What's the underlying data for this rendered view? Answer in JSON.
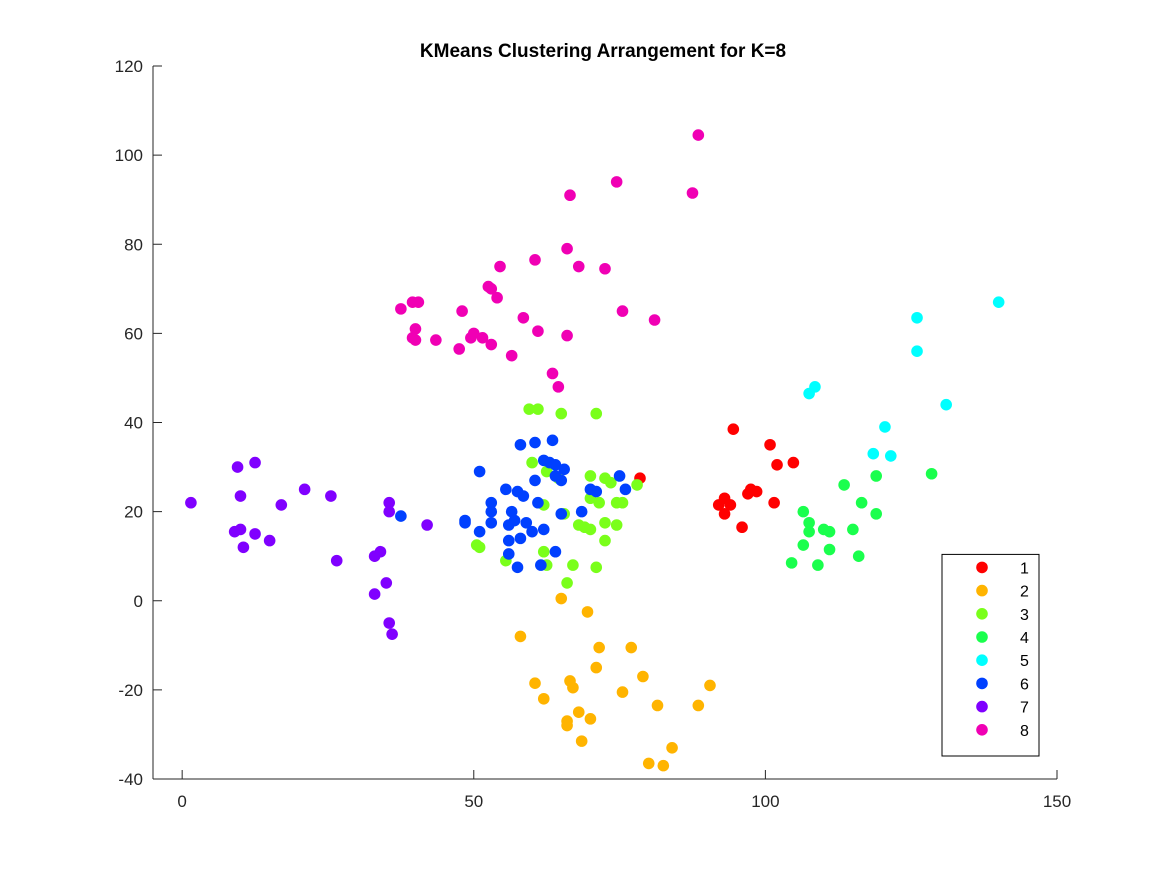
{
  "chart_data": {
    "type": "scatter",
    "title": "KMeans Clustering Arrangement for K=8",
    "xlabel": "",
    "ylabel": "",
    "xlim": [
      -5,
      150
    ],
    "ylim": [
      -40,
      120
    ],
    "xticks": [
      0,
      50,
      100,
      150
    ],
    "yticks": [
      -40,
      -20,
      0,
      20,
      40,
      60,
      80,
      100,
      120
    ],
    "grid": false,
    "legend_position": "bottom-right",
    "series": [
      {
        "name": "1",
        "color": "#ff0000",
        "points": [
          [
            78.5,
            27.5
          ],
          [
            94.5,
            38.5
          ],
          [
            100.8,
            35.0
          ],
          [
            102.0,
            30.5
          ],
          [
            104.8,
            31.0
          ],
          [
            92.0,
            21.5
          ],
          [
            93.0,
            23.0
          ],
          [
            94.0,
            21.5
          ],
          [
            93.0,
            19.5
          ],
          [
            96.0,
            16.5
          ],
          [
            97.0,
            24.0
          ],
          [
            97.5,
            25.0
          ],
          [
            98.5,
            24.5
          ],
          [
            101.5,
            22.0
          ]
        ]
      },
      {
        "name": "2",
        "color": "#ffb400",
        "points": [
          [
            58.0,
            -8.0
          ],
          [
            65.0,
            0.5
          ],
          [
            69.5,
            -2.5
          ],
          [
            71.5,
            -10.5
          ],
          [
            77.0,
            -10.5
          ],
          [
            71.0,
            -15.0
          ],
          [
            60.5,
            -18.5
          ],
          [
            66.5,
            -18.0
          ],
          [
            67.0,
            -19.5
          ],
          [
            79.0,
            -17.0
          ],
          [
            75.5,
            -20.5
          ],
          [
            90.5,
            -19.0
          ],
          [
            62.0,
            -22.0
          ],
          [
            81.5,
            -23.5
          ],
          [
            88.5,
            -23.5
          ],
          [
            68.0,
            -25.0
          ],
          [
            70.0,
            -26.5
          ],
          [
            66.0,
            -27.0
          ],
          [
            66.0,
            -28.0
          ],
          [
            68.5,
            -31.5
          ],
          [
            84.0,
            -33.0
          ],
          [
            80.0,
            -36.5
          ],
          [
            82.5,
            -37.0
          ]
        ]
      },
      {
        "name": "3",
        "color": "#7aff1a",
        "points": [
          [
            59.5,
            43.0
          ],
          [
            61.0,
            43.0
          ],
          [
            65.0,
            42.0
          ],
          [
            71.0,
            42.0
          ],
          [
            60.0,
            31.0
          ],
          [
            62.5,
            29.0
          ],
          [
            64.5,
            27.5
          ],
          [
            70.0,
            28.0
          ],
          [
            72.5,
            27.5
          ],
          [
            73.5,
            26.5
          ],
          [
            78.0,
            26.0
          ],
          [
            70.0,
            23.0
          ],
          [
            71.5,
            22.0
          ],
          [
            74.5,
            22.0
          ],
          [
            75.5,
            22.0
          ],
          [
            62.0,
            21.5
          ],
          [
            68.0,
            17.0
          ],
          [
            69.0,
            16.5
          ],
          [
            70.0,
            16.0
          ],
          [
            72.5,
            17.5
          ],
          [
            74.5,
            17.0
          ],
          [
            72.5,
            13.5
          ],
          [
            50.5,
            12.5
          ],
          [
            51.0,
            12.0
          ],
          [
            55.5,
            9.0
          ],
          [
            62.0,
            11.0
          ],
          [
            62.5,
            8.0
          ],
          [
            67.0,
            8.0
          ],
          [
            71.0,
            7.5
          ],
          [
            66.0,
            4.0
          ],
          [
            65.5,
            19.5
          ]
        ]
      },
      {
        "name": "4",
        "color": "#1aff4d",
        "points": [
          [
            113.5,
            26.0
          ],
          [
            119.0,
            28.0
          ],
          [
            128.5,
            28.5
          ],
          [
            116.5,
            22.0
          ],
          [
            106.5,
            20.0
          ],
          [
            119.0,
            19.5
          ],
          [
            107.5,
            17.5
          ],
          [
            107.5,
            15.5
          ],
          [
            110.0,
            16.0
          ],
          [
            111.0,
            15.5
          ],
          [
            115.0,
            16.0
          ],
          [
            106.5,
            12.5
          ],
          [
            111.0,
            11.5
          ],
          [
            116.0,
            10.0
          ],
          [
            104.5,
            8.5
          ],
          [
            109.0,
            8.0
          ]
        ]
      },
      {
        "name": "5",
        "color": "#00ffff",
        "points": [
          [
            140.0,
            67.0
          ],
          [
            126.0,
            63.5
          ],
          [
            126.0,
            56.0
          ],
          [
            108.5,
            48.0
          ],
          [
            107.5,
            46.5
          ],
          [
            131.0,
            44.0
          ],
          [
            120.5,
            39.0
          ],
          [
            118.5,
            33.0
          ],
          [
            121.5,
            32.5
          ]
        ]
      },
      {
        "name": "6",
        "color": "#0040ff",
        "points": [
          [
            63.5,
            36.0
          ],
          [
            58.0,
            35.0
          ],
          [
            60.5,
            35.5
          ],
          [
            62.0,
            31.5
          ],
          [
            63.0,
            31.0
          ],
          [
            64.0,
            30.5
          ],
          [
            65.5,
            29.5
          ],
          [
            64.0,
            28.0
          ],
          [
            60.5,
            27.0
          ],
          [
            65.0,
            27.0
          ],
          [
            51.0,
            29.0
          ],
          [
            75.0,
            28.0
          ],
          [
            70.0,
            25.0
          ],
          [
            71.0,
            24.5
          ],
          [
            76.0,
            25.0
          ],
          [
            57.5,
            24.5
          ],
          [
            58.5,
            23.5
          ],
          [
            55.5,
            25.0
          ],
          [
            53.0,
            22.0
          ],
          [
            61.0,
            22.0
          ],
          [
            53.0,
            20.0
          ],
          [
            56.5,
            20.0
          ],
          [
            65.0,
            19.5
          ],
          [
            68.5,
            20.0
          ],
          [
            48.5,
            18.0
          ],
          [
            48.5,
            17.5
          ],
          [
            53.0,
            17.5
          ],
          [
            56.0,
            17.0
          ],
          [
            57.0,
            18.0
          ],
          [
            59.0,
            17.5
          ],
          [
            60.0,
            15.5
          ],
          [
            62.0,
            16.0
          ],
          [
            51.0,
            15.5
          ],
          [
            56.0,
            13.5
          ],
          [
            58.0,
            14.0
          ],
          [
            56.0,
            10.5
          ],
          [
            64.0,
            11.0
          ],
          [
            57.5,
            7.5
          ],
          [
            61.5,
            8.0
          ],
          [
            37.5,
            19.0
          ]
        ]
      },
      {
        "name": "7",
        "color": "#8000ff",
        "points": [
          [
            1.5,
            22.0
          ],
          [
            9.5,
            30.0
          ],
          [
            12.5,
            31.0
          ],
          [
            10.0,
            23.5
          ],
          [
            21.0,
            25.0
          ],
          [
            25.5,
            23.5
          ],
          [
            17.0,
            21.5
          ],
          [
            35.5,
            22.0
          ],
          [
            35.5,
            20.0
          ],
          [
            42.0,
            17.0
          ],
          [
            9.0,
            15.5
          ],
          [
            10.0,
            16.0
          ],
          [
            12.5,
            15.0
          ],
          [
            15.0,
            13.5
          ],
          [
            10.5,
            12.0
          ],
          [
            26.5,
            9.0
          ],
          [
            33.0,
            10.0
          ],
          [
            34.0,
            11.0
          ],
          [
            35.0,
            4.0
          ],
          [
            33.0,
            1.5
          ],
          [
            35.5,
            -5.0
          ],
          [
            36.0,
            -7.5
          ]
        ]
      },
      {
        "name": "8",
        "color": "#f000b4",
        "points": [
          [
            88.5,
            104.5
          ],
          [
            74.5,
            94.0
          ],
          [
            87.5,
            91.5
          ],
          [
            66.5,
            91.0
          ],
          [
            66.0,
            79.0
          ],
          [
            60.5,
            76.5
          ],
          [
            54.5,
            75.0
          ],
          [
            72.5,
            74.5
          ],
          [
            68.0,
            75.0
          ],
          [
            52.5,
            70.5
          ],
          [
            53.0,
            70.0
          ],
          [
            54.0,
            68.0
          ],
          [
            39.5,
            67.0
          ],
          [
            40.5,
            67.0
          ],
          [
            37.5,
            65.5
          ],
          [
            48.0,
            65.0
          ],
          [
            75.5,
            65.0
          ],
          [
            58.5,
            63.5
          ],
          [
            81.0,
            63.0
          ],
          [
            40.0,
            61.0
          ],
          [
            61.0,
            60.5
          ],
          [
            50.0,
            60.0
          ],
          [
            66.0,
            59.5
          ],
          [
            49.5,
            59.0
          ],
          [
            51.5,
            59.0
          ],
          [
            39.5,
            59.0
          ],
          [
            40.0,
            58.5
          ],
          [
            43.5,
            58.5
          ],
          [
            53.0,
            57.5
          ],
          [
            47.5,
            56.5
          ],
          [
            56.5,
            55.0
          ],
          [
            63.5,
            51.0
          ],
          [
            64.5,
            48.0
          ]
        ]
      }
    ]
  }
}
